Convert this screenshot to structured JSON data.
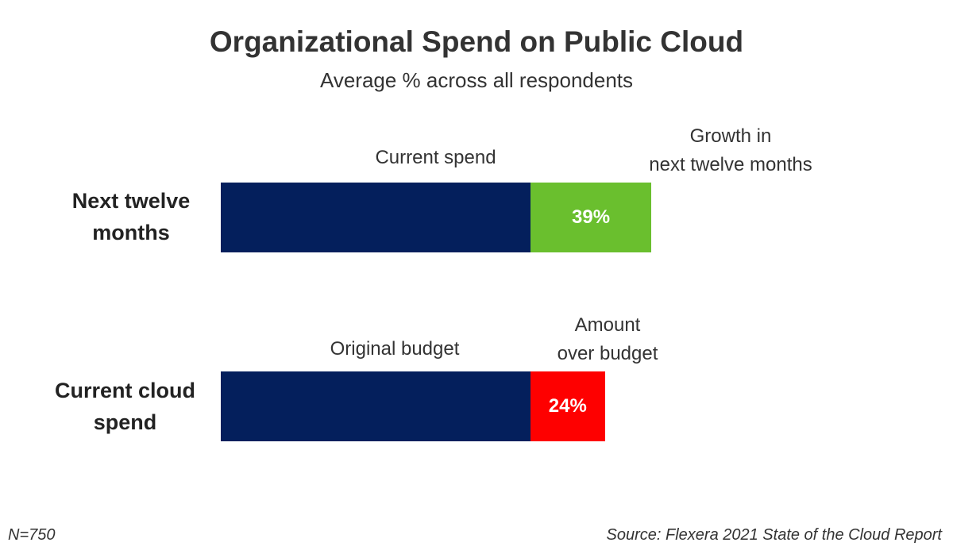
{
  "colors": {
    "base": "#041f5c",
    "growth": "#6abf2e",
    "over_budget": "#fe0000"
  },
  "chart_data": {
    "type": "bar",
    "orientation": "horizontal",
    "stacked": true,
    "title": "Organizational Spend on Public Cloud",
    "subtitle": "Average % across all respondents",
    "categories": [
      "Next twelve months",
      "Current cloud spend"
    ],
    "rows": [
      {
        "label": "Next twelve months",
        "label_lines": [
          "Next twelve",
          "months"
        ],
        "base_name": "Current spend",
        "base_value": 100,
        "extra_name_lines": [
          "Growth in",
          "next twelve months"
        ],
        "extra_value": 39,
        "extra_label": "39%",
        "extra_color_key": "growth"
      },
      {
        "label": "Current cloud spend",
        "label_lines": [
          "Current cloud",
          "spend"
        ],
        "base_name": "Original budget",
        "base_value": 100,
        "extra_name_lines": [
          "Amount",
          "over budget"
        ],
        "extra_value": 24,
        "extra_label": "24%",
        "extra_color_key": "over_budget"
      }
    ],
    "unit": "%"
  },
  "footer": {
    "sample_size": "N=750",
    "source": "Source: Flexera 2021 State of the Cloud Report"
  }
}
